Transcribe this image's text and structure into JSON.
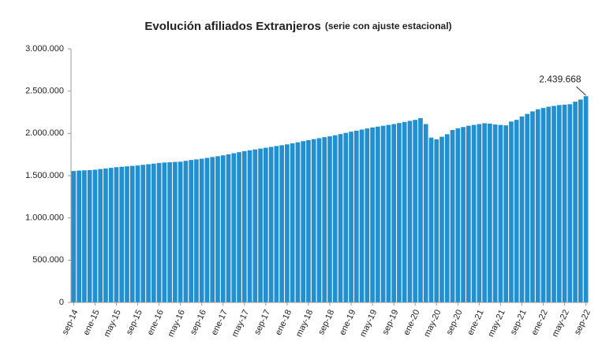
{
  "chart_data": {
    "type": "bar",
    "title": "Evolución afiliados Extranjeros",
    "subtitle": "(serie con ajuste estacional)",
    "color": "#2290d0",
    "categories": [
      "sep-14",
      null,
      null,
      null,
      "ene-15",
      null,
      null,
      null,
      "may-15",
      null,
      null,
      null,
      "sep-15",
      null,
      null,
      null,
      "ene-16",
      null,
      null,
      null,
      "may-16",
      null,
      null,
      null,
      "sep-16",
      null,
      null,
      null,
      "ene-17",
      null,
      null,
      null,
      "may-17",
      null,
      null,
      null,
      "sep-17",
      null,
      null,
      null,
      "ene-18",
      null,
      null,
      null,
      "may-18",
      null,
      null,
      null,
      "sep-18",
      null,
      null,
      null,
      "ene-19",
      null,
      null,
      null,
      "may-19",
      null,
      null,
      null,
      "sep-19",
      null,
      null,
      null,
      "ene-20",
      null,
      null,
      null,
      "may-20",
      null,
      null,
      null,
      "sep-20",
      null,
      null,
      null,
      "ene-21",
      null,
      null,
      null,
      "may-21",
      null,
      null,
      null,
      "sep-21",
      null,
      null,
      null,
      "ene-22",
      null,
      null,
      null,
      "may-22",
      null,
      null,
      null,
      "sep-22"
    ],
    "values": [
      1555000,
      1560000,
      1563000,
      1566000,
      1570000,
      1578000,
      1585000,
      1592000,
      1600000,
      1605000,
      1610000,
      1615000,
      1620000,
      1628000,
      1635000,
      1642000,
      1650000,
      1655000,
      1658000,
      1662000,
      1665000,
      1675000,
      1685000,
      1692000,
      1700000,
      1710000,
      1720000,
      1730000,
      1740000,
      1752000,
      1765000,
      1778000,
      1790000,
      1800000,
      1810000,
      1820000,
      1830000,
      1840000,
      1850000,
      1860000,
      1870000,
      1882000,
      1895000,
      1908000,
      1920000,
      1932000,
      1943000,
      1955000,
      1965000,
      1978000,
      1992000,
      2006000,
      2020000,
      2032000,
      2045000,
      2058000,
      2070000,
      2080000,
      2090000,
      2100000,
      2110000,
      2122000,
      2135000,
      2148000,
      2160000,
      2180000,
      2110000,
      1950000,
      1930000,
      1960000,
      1990000,
      2040000,
      2060000,
      2075000,
      2090000,
      2100000,
      2110000,
      2120000,
      2115000,
      2105000,
      2100000,
      2095000,
      2140000,
      2160000,
      2200000,
      2230000,
      2260000,
      2285000,
      2300000,
      2315000,
      2325000,
      2335000,
      2340000,
      2345000,
      2375000,
      2400000,
      2439668
    ],
    "value_labels": [
      null,
      null,
      null,
      null,
      null,
      null,
      null,
      null,
      null,
      null,
      null,
      null,
      null,
      null,
      null,
      null,
      null,
      null,
      null,
      null,
      null,
      null,
      null,
      null,
      null,
      null,
      null,
      null,
      null,
      null,
      null,
      null,
      null,
      null,
      null,
      null,
      null,
      null,
      null,
      null,
      null,
      null,
      null,
      null,
      null,
      null,
      null,
      null,
      null,
      null,
      null,
      null,
      null,
      null,
      null,
      null,
      null,
      null,
      null,
      null,
      null,
      null,
      null,
      null,
      null,
      null,
      null,
      null,
      null,
      null,
      null,
      null,
      null,
      null,
      null,
      null,
      null,
      null,
      null,
      null,
      null,
      null,
      null,
      null,
      null,
      null,
      null,
      null,
      null,
      null,
      null,
      null,
      null,
      null,
      null,
      null,
      "2.439.668"
    ],
    "ylim": [
      0,
      3000000
    ],
    "yticks": [
      0,
      {
        "value": 500000,
        "label": "500.000"
      },
      {
        "value": 1000000,
        "label": "1.000.000"
      },
      {
        "value": 1500000,
        "label": "1.500.000"
      },
      {
        "value": 2000000,
        "label": "2.000.000"
      },
      {
        "value": 2500000,
        "label": "2.500.000"
      },
      {
        "value": 3000000,
        "label": "3.000.000"
      }
    ],
    "grid": false
  }
}
